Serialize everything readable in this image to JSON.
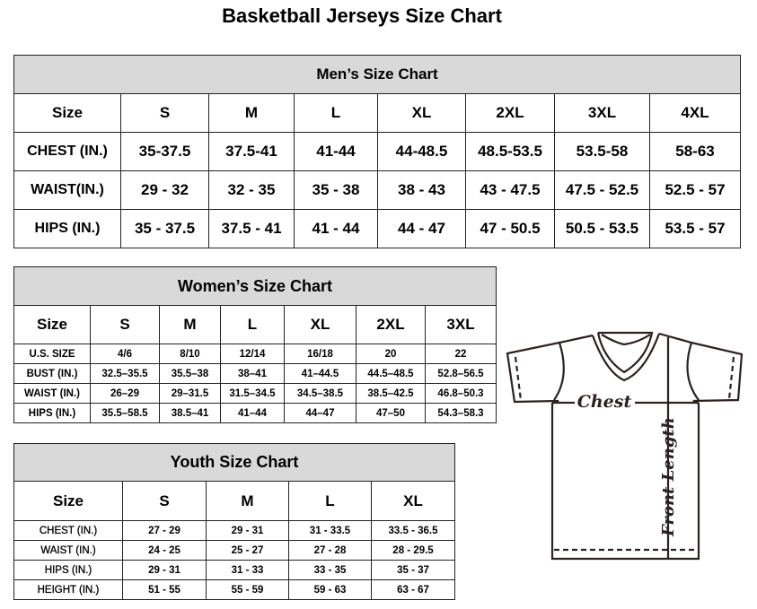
{
  "title": "Basketball Jerseys Size Chart",
  "men": {
    "caption": "Men’s Size Chart",
    "headers": [
      "Size",
      "S",
      "M",
      "L",
      "XL",
      "2XL",
      "3XL",
      "4XL"
    ],
    "rows": [
      [
        "CHEST (IN.)",
        "35-37.5",
        "37.5-41",
        "41-44",
        "44-48.5",
        "48.5-53.5",
        "53.5-58",
        "58-63"
      ],
      [
        "WAIST(IN.)",
        "29 - 32",
        "32 - 35",
        "35 - 38",
        "38 - 43",
        "43 - 47.5",
        "47.5 - 52.5",
        "52.5 - 57"
      ],
      [
        "HIPS (IN.)",
        "35 - 37.5",
        "37.5 - 41",
        "41 - 44",
        "44 - 47",
        "47 - 50.5",
        "50.5 - 53.5",
        "53.5 - 57"
      ]
    ]
  },
  "women": {
    "caption": "Women’s Size Chart",
    "headers": [
      "Size",
      "S",
      "M",
      "L",
      "XL",
      "2XL",
      "3XL"
    ],
    "rows": [
      [
        "U.S. SIZE",
        "4/6",
        "8/10",
        "12/14",
        "16/18",
        "20",
        "22"
      ],
      [
        "BUST (IN.)",
        "32.5–35.5",
        "35.5–38",
        "38–41",
        "41–44.5",
        "44.5–48.5",
        "52.8–56.5"
      ],
      [
        "WAIST (IN.)",
        "26–29",
        "29–31.5",
        "31.5–34.5",
        "34.5–38.5",
        "38.5–42.5",
        "46.8–50.3"
      ],
      [
        "HIPS (IN.)",
        "35.5–58.5",
        "38.5–41",
        "41–44",
        "44–47",
        "47–50",
        "54.3–58.3"
      ]
    ]
  },
  "youth": {
    "caption": "Youth Size Chart",
    "headers": [
      "Size",
      "S",
      "M",
      "L",
      "XL"
    ],
    "rows": [
      [
        "CHEST (IN.)",
        "27 - 29",
        "29 - 31",
        "31 - 33.5",
        "33.5 - 36.5"
      ],
      [
        "WAIST (IN.)",
        "24 - 25",
        "25 - 27",
        "27 - 28",
        "28 - 29.5"
      ],
      [
        "HIPS (IN.)",
        "29 - 31",
        "31 - 33",
        "33 - 35",
        "35 - 37"
      ],
      [
        "HEIGHT (IN.)",
        "51 - 55",
        "55 - 59",
        "59 - 63",
        "63 - 67"
      ]
    ]
  },
  "diagram": {
    "chest_label": "Chest",
    "length_label": "Front Length"
  }
}
